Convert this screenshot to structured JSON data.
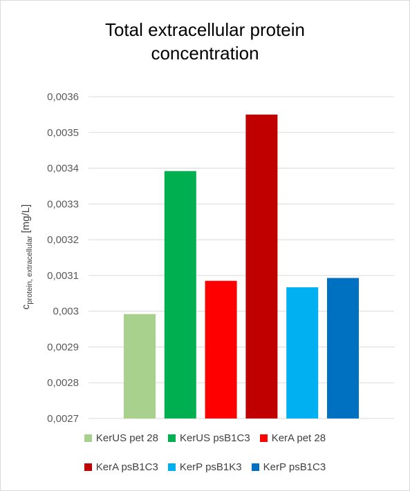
{
  "chart_data": {
    "type": "bar",
    "title_lines": [
      "Total extracellular protein",
      "concentration"
    ],
    "ylabel": {
      "main": "c",
      "subscript": "protein, extracellular",
      "unit": " [mg/L]"
    },
    "xlabel": "",
    "ylim": [
      0.0027,
      0.0036
    ],
    "ytick_step": 0.0001,
    "ytick_labels": [
      "0,0027",
      "0,0028",
      "0,0029",
      "0,003",
      "0,0031",
      "0,0032",
      "0,0033",
      "0,0034",
      "0,0035",
      "0,0036"
    ],
    "grid": "horizontal",
    "legend_position": "bottom",
    "series": [
      {
        "name": "KerUS pet 28",
        "value": 0.002992,
        "color": "#a9d18e"
      },
      {
        "name": "KerUS psB1C3",
        "value": 0.003392,
        "color": "#00b050"
      },
      {
        "name": "KerA pet 28",
        "value": 0.003085,
        "color": "#ff0000"
      },
      {
        "name": "KerA psB1C3",
        "value": 0.00355,
        "color": "#c00000"
      },
      {
        "name": "KerP psB1K3",
        "value": 0.003067,
        "color": "#00b0f0"
      },
      {
        "name": "KerP psB1C3",
        "value": 0.003093,
        "color": "#0070c0"
      }
    ]
  }
}
